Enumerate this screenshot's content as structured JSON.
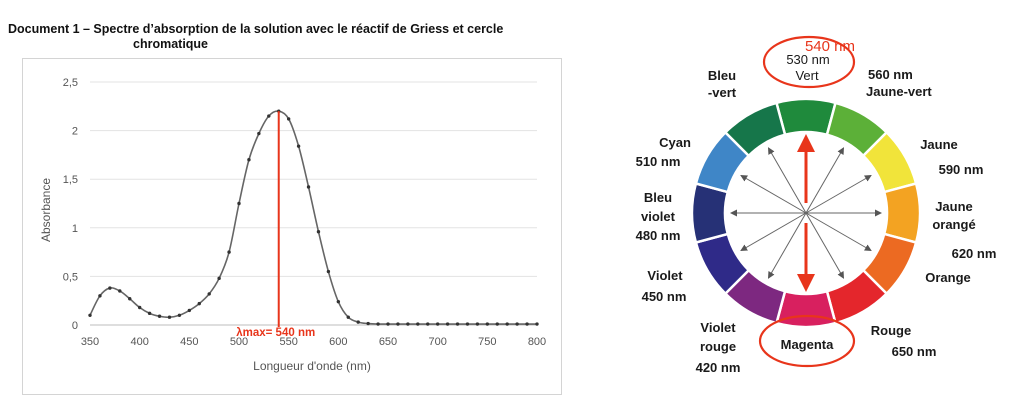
{
  "document_title": {
    "line1": "Document 1 – Spectre d’absorption de la solution avec le réactif de Griess et cercle",
    "line2": "chromatique"
  },
  "chart_data": {
    "type": "line",
    "title": "",
    "xlabel": "Longueur d'onde (nm)",
    "ylabel": "Absorbance",
    "xlim": [
      350,
      800
    ],
    "ylim": [
      0,
      2.5
    ],
    "x_ticks": [
      "350",
      "400",
      "450",
      "500",
      "550",
      "600",
      "650",
      "700",
      "750",
      "800"
    ],
    "y_ticks": [
      "0",
      "0,5",
      "1",
      "1,5",
      "2",
      "2,5"
    ],
    "grid": "horizontal",
    "line_color": "#666666",
    "x": [
      350,
      360,
      370,
      380,
      390,
      400,
      410,
      420,
      430,
      440,
      450,
      460,
      470,
      480,
      490,
      500,
      510,
      520,
      530,
      540,
      550,
      560,
      570,
      580,
      590,
      600,
      610,
      620,
      630,
      640,
      650,
      660,
      670,
      680,
      690,
      700,
      710,
      720,
      730,
      740,
      750,
      760,
      770,
      780,
      790,
      800
    ],
    "y": [
      0.1,
      0.3,
      0.38,
      0.35,
      0.27,
      0.18,
      0.12,
      0.09,
      0.08,
      0.1,
      0.15,
      0.22,
      0.32,
      0.48,
      0.75,
      1.25,
      1.7,
      1.97,
      2.15,
      2.2,
      2.12,
      1.84,
      1.42,
      0.96,
      0.55,
      0.24,
      0.08,
      0.03,
      0.015,
      0.01,
      0.01,
      0.01,
      0.01,
      0.01,
      0.01,
      0.01,
      0.01,
      0.01,
      0.01,
      0.01,
      0.01,
      0.01,
      0.01,
      0.01,
      0.01,
      0.01
    ],
    "annotation": {
      "text": "λmax= 540 nm",
      "x": 540,
      "color": "#e8351b"
    }
  },
  "color_wheel": {
    "segments": [
      {
        "name": "vert",
        "color": "#1f8a3c"
      },
      {
        "name": "jaune-vert",
        "color": "#5cb038"
      },
      {
        "name": "jaune",
        "color": "#f1e43a"
      },
      {
        "name": "jaune-orange",
        "color": "#f3a322"
      },
      {
        "name": "orange",
        "color": "#ec6a22"
      },
      {
        "name": "rouge",
        "color": "#e4262c"
      },
      {
        "name": "magenta",
        "color": "#d8205f"
      },
      {
        "name": "violet-rouge",
        "color": "#7d2880"
      },
      {
        "name": "violet",
        "color": "#2f2a88"
      },
      {
        "name": "bleu-violet",
        "color": "#263176"
      },
      {
        "name": "cyan",
        "color": "#3f86c7"
      },
      {
        "name": "bleu-vert",
        "color": "#16764a"
      }
    ],
    "labels": {
      "vert_nm": "530 nm",
      "vert": "Vert",
      "jaune_vert_nm": "560 nm",
      "jaune_vert": "Jaune-vert",
      "jaune": "Jaune",
      "jaune_nm": "590 nm",
      "jaune_orange_1": "Jaune",
      "jaune_orange_2": "orangé",
      "jaune_orange_nm": "620 nm",
      "orange": "Orange",
      "rouge": "Rouge",
      "rouge_nm": "650 nm",
      "magenta": "Magenta",
      "violet_rouge_1": "Violet",
      "violet_rouge_2": "rouge",
      "violet_rouge_nm": "420 nm",
      "violet": "Violet",
      "violet_nm": "450 nm",
      "bleu_violet_1": "Bleu",
      "bleu_violet_2": "violet",
      "bleu_violet_nm": "480 nm",
      "cyan": "Cyan",
      "cyan_nm": "510 nm",
      "bleu_vert_1": "Bleu",
      "bleu_vert_2": "-vert"
    },
    "highlight": {
      "text": "540 nm",
      "color": "#e8351b"
    }
  }
}
